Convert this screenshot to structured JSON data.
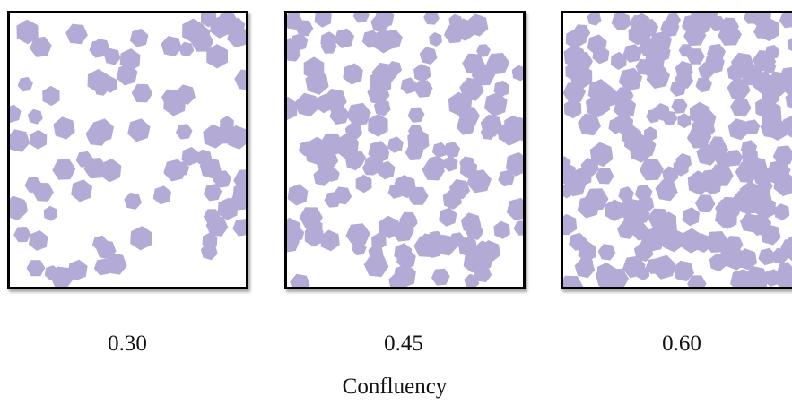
{
  "colors": {
    "cell": "#b4aad6",
    "border": "#000000",
    "background": "#ffffff"
  },
  "panels": [
    {
      "label": "0.30",
      "confluency": 0.3
    },
    {
      "label": "0.45",
      "confluency": 0.45
    },
    {
      "label": "0.60",
      "confluency": 0.6
    }
  ],
  "axis_title": "Confluency"
}
